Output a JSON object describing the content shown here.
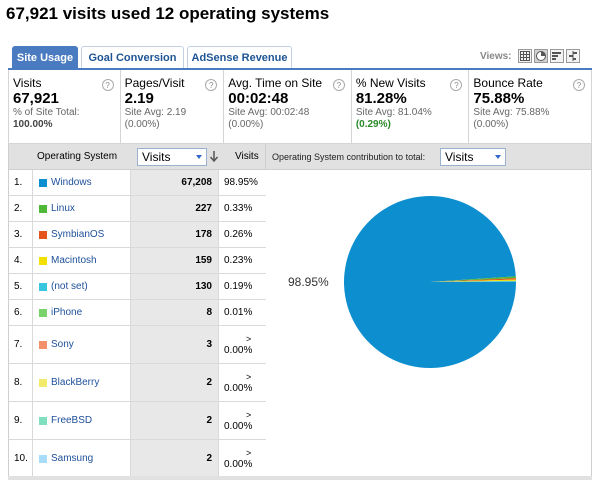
{
  "page": {
    "title": "67,921 visits used 12 operating systems"
  },
  "tabs": [
    {
      "label": "Site Usage",
      "active": true
    },
    {
      "label": "Goal Conversion",
      "active": false
    },
    {
      "label": "AdSense Revenue",
      "active": false
    }
  ],
  "views": {
    "label": "Views:",
    "icons": [
      "table-view-icon",
      "pie-view-icon",
      "bar-view-icon",
      "comparison-view-icon"
    ],
    "active_index": 1
  },
  "scorecard": [
    {
      "label": "Visits",
      "value": "67,921",
      "sub1": "% of Site Total:",
      "sub2": "100.00%",
      "sub2_color": "default"
    },
    {
      "label": "Pages/Visit",
      "value": "2.19",
      "sub1": "Site Avg: 2.19",
      "sub2": "(0.00%)",
      "sub2_color": "default"
    },
    {
      "label": "Avg. Time on Site",
      "value": "00:02:48",
      "sub1": "Site Avg: 00:02:48",
      "sub2": "(0.00%)",
      "sub2_color": "default"
    },
    {
      "label": "% New Visits",
      "value": "81.28%",
      "sub1": "Site Avg: 81.04%",
      "sub2": "(0.29%)",
      "sub2_color": "green"
    },
    {
      "label": "Bounce Rate",
      "value": "75.88%",
      "sub1": "Site Avg: 75.88%",
      "sub2": "(0.00%)",
      "sub2_color": "default"
    }
  ],
  "help_glyph": "?",
  "table": {
    "header": {
      "dimension": "Operating System",
      "metric_select": "Visits",
      "visits": "Visits"
    },
    "rows": [
      {
        "idx": "1.",
        "name": "Windows",
        "visits": "67,208",
        "pct": "98.95%",
        "color": "#0d8ecf",
        "gt": ""
      },
      {
        "idx": "2.",
        "name": "Linux",
        "visits": "227",
        "pct": "0.33%",
        "color": "#4fb836",
        "gt": ""
      },
      {
        "idx": "3.",
        "name": "SymbianOS",
        "visits": "178",
        "pct": "0.26%",
        "color": "#e4541c",
        "gt": ""
      },
      {
        "idx": "4.",
        "name": "Macintosh",
        "visits": "159",
        "pct": "0.23%",
        "color": "#f2e000",
        "gt": ""
      },
      {
        "idx": "5.",
        "name": "(not set)",
        "visits": "130",
        "pct": "0.19%",
        "color": "#38c5e0",
        "gt": ""
      },
      {
        "idx": "6.",
        "name": "iPhone",
        "visits": "8",
        "pct": "0.01%",
        "color": "#78d46a",
        "gt": ""
      },
      {
        "idx": "7.",
        "name": "Sony",
        "visits": "3",
        "pct": "0.00%",
        "color": "#f3926a",
        "gt": ">"
      },
      {
        "idx": "8.",
        "name": "BlackBerry",
        "visits": "2",
        "pct": "0.00%",
        "color": "#f2ea6a",
        "gt": ">"
      },
      {
        "idx": "9.",
        "name": "FreeBSD",
        "visits": "2",
        "pct": "0.00%",
        "color": "#7ee0be",
        "gt": ">"
      },
      {
        "idx": "10.",
        "name": "Samsung",
        "visits": "2",
        "pct": "0.00%",
        "color": "#a8dcf8",
        "gt": ">"
      }
    ]
  },
  "chart_panel": {
    "label": "Operating System contribution to total:",
    "select": "Visits"
  },
  "chart_data": {
    "type": "pie",
    "label_shown": "98.95%",
    "slices": [
      {
        "name": "Windows",
        "value": 67208,
        "color": "#0d8ecf"
      },
      {
        "name": "Linux",
        "value": 227,
        "color": "#4fb836"
      },
      {
        "name": "SymbianOS",
        "value": 178,
        "color": "#e4541c"
      },
      {
        "name": "Macintosh",
        "value": 159,
        "color": "#f2e000"
      },
      {
        "name": "(not set)",
        "value": 130,
        "color": "#38c5e0"
      },
      {
        "name": "iPhone",
        "value": 8,
        "color": "#78d46a"
      },
      {
        "name": "Sony",
        "value": 3,
        "color": "#f3926a"
      },
      {
        "name": "BlackBerry",
        "value": 2,
        "color": "#f2ea6a"
      },
      {
        "name": "FreeBSD",
        "value": 2,
        "color": "#7ee0be"
      },
      {
        "name": "Samsung",
        "value": 2,
        "color": "#a8dcf8"
      }
    ]
  }
}
